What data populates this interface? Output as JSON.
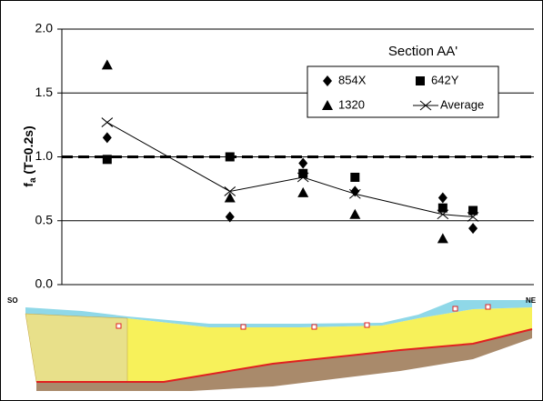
{
  "chart_data": {
    "type": "scatter",
    "title": "Section AA'",
    "y_label": {
      "main": "f",
      "sub": "a",
      "rest": " (T=0.2s)"
    },
    "x": [
      9.6,
      35.6,
      51.1,
      62.1,
      80.7,
      87.1
    ],
    "xlim": [
      0,
      100
    ],
    "ylim": [
      0,
      2
    ],
    "yticks": [
      {
        "value": 0,
        "label": "0.0"
      },
      0.5,
      {
        "value": 1,
        "label": "1.0"
      },
      1.5,
      {
        "value": 2,
        "label": "2.0"
      }
    ],
    "grid": true,
    "reference_line": 1.0,
    "series": [
      {
        "name": "854X",
        "marker": "diamond",
        "color": "#000000",
        "values": [
          1.15,
          0.53,
          0.95,
          0.73,
          0.68,
          0.44
        ]
      },
      {
        "name": "642Y",
        "marker": "square",
        "color": "#000000",
        "values": [
          0.98,
          1.0,
          0.87,
          0.84,
          0.6,
          0.58
        ]
      },
      {
        "name": "1320",
        "marker": "triangle",
        "color": "#000000",
        "values": [
          1.72,
          0.68,
          0.72,
          0.55,
          0.36,
          null
        ]
      },
      {
        "name": "Average",
        "marker": "cross",
        "line": true,
        "color": "#000000",
        "values": [
          1.27,
          0.73,
          0.84,
          0.71,
          0.55,
          0.53
        ]
      }
    ]
  },
  "section": {
    "left": "SO",
    "right": "NE"
  }
}
